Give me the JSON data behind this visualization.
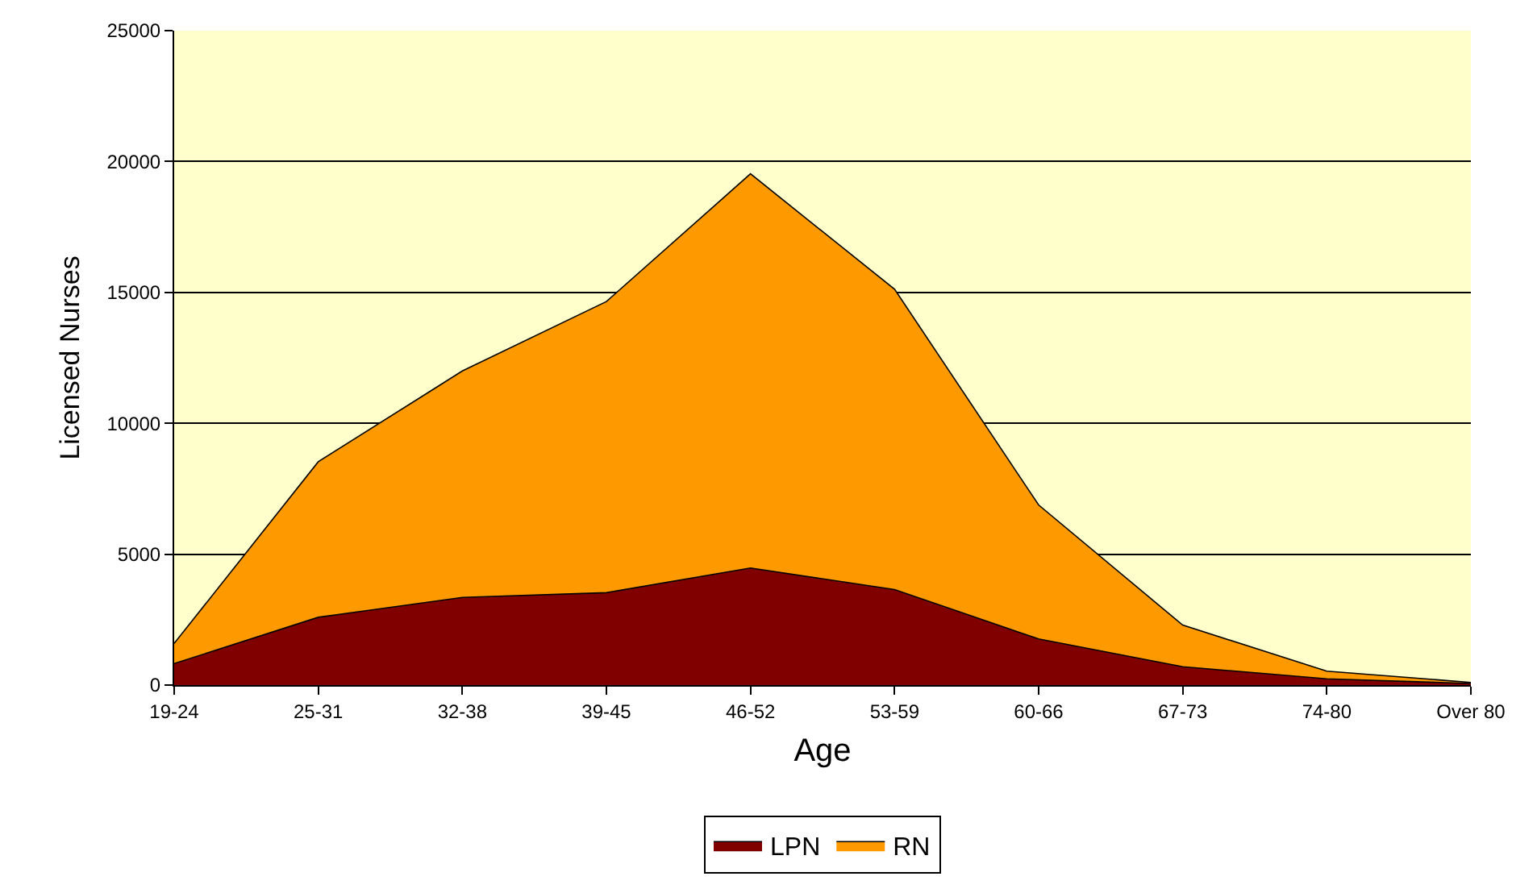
{
  "chart_data": {
    "type": "area",
    "stacked": true,
    "xlabel": "Age",
    "ylabel": "Licensed Nurses",
    "categories": [
      "19-24",
      "25-31",
      "32-38",
      "39-45",
      "46-52",
      "53-59",
      "60-66",
      "67-73",
      "74-80",
      "Over 80"
    ],
    "series": [
      {
        "name": "LPN",
        "color": "#800000",
        "values": [
          820,
          2590,
          3350,
          3530,
          4470,
          3650,
          1760,
          700,
          240,
          60
        ]
      },
      {
        "name": "RN",
        "color": "#ff9900",
        "values": [
          770,
          5940,
          8650,
          11120,
          15060,
          11470,
          5120,
          1590,
          290,
          40
        ]
      }
    ],
    "ylim": [
      0,
      25000
    ],
    "yticks": [
      0,
      5000,
      10000,
      15000,
      20000,
      25000
    ],
    "grid": "y",
    "legend": "bottom"
  }
}
